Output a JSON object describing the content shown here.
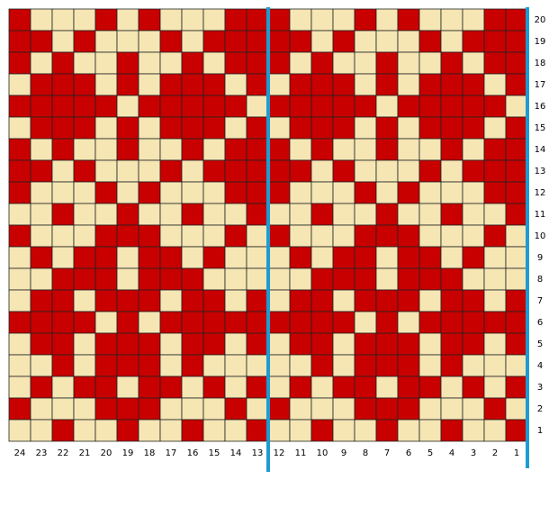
{
  "chart": {
    "column_labels": [
      24,
      23,
      22,
      21,
      20,
      19,
      18,
      17,
      16,
      15,
      14,
      13,
      12,
      11,
      10,
      9,
      8,
      7,
      6,
      5,
      4,
      3,
      2,
      1
    ],
    "row_labels": [
      20,
      19,
      18,
      17,
      16,
      15,
      14,
      13,
      12,
      11,
      10,
      9,
      8,
      7,
      6,
      5,
      4,
      3,
      2,
      1
    ],
    "rows": [
      "RCCCRCRCCCRRRCCCRCRCCCRR",
      "RRCRCCCRCRRRRRCRCCCRCRRR",
      "RCRCCRCCRCRRRCRCCRCCRCRR",
      "CRRRCRCRRRCRCRRRCRCRRRCR",
      "RRRRRCRRRRRCRRRRRCRRRRRC",
      "CRRRCRCRRRCRCRRRCRCRRRCR",
      "RCRCCRCCRCRRRCRCCRCCRCRR",
      "RRCRCCCRCRRRRRCRCCCRCRRR",
      "RCCCRCRCCCRRRCCCRCRCCCRR",
      "CCRCCRCCRCCRCCRCCRCCRCCR",
      "RCCCRRRCCCRCRCCCRRRCCCRC",
      "CRCRRCRRCRCCCRCRRCRRCRCC",
      "CCRRRCRRRCCCCCRRRCRRRCCC",
      "CRRCRRRCRRCRCRRCRRRCRRCR",
      "RRRRCRCRRRRRRRRRCRCRRRRR",
      "CRRCRRRCRRCRCRRCRRRCRRCR",
      "CCRCRRRCRCCCCCRCRRRCRCCC",
      "CRCRRCRRCRCRCRCRRCRRCRCR",
      "RCCCRRRCCCRCRCCCRRRCCCRC",
      "CCRCCRCCRCCRCCRCCRCCRCCR"
    ],
    "colors": {
      "R": "#c80000",
      "C": "#f5e6b4"
    }
  }
}
